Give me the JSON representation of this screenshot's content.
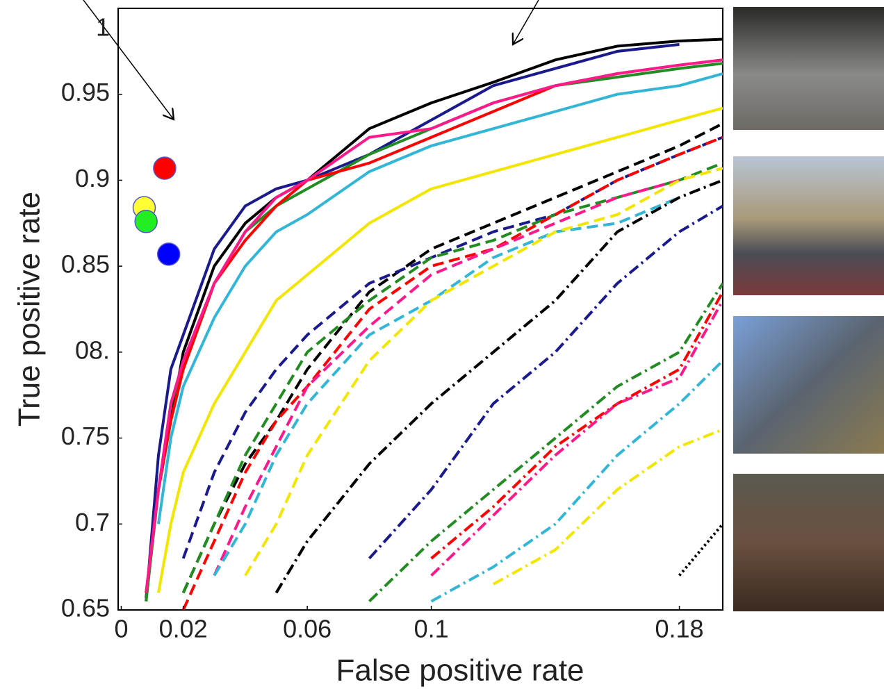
{
  "chart_data": {
    "type": "line",
    "ylabel": "True positive rate",
    "xlabel": "False positive rate",
    "xlim": [
      -0.001,
      0.194
    ],
    "ylim": [
      0.65,
      1.0
    ],
    "xticks": [
      0,
      0.02,
      0.06,
      0.1,
      0.18
    ],
    "yticks": [
      0.65,
      0.7,
      0.75,
      {
        "value": 0.8,
        "label": "08."
      },
      0.85,
      0.9,
      0.95,
      1
    ],
    "x": [
      0.008,
      0.012,
      0.016,
      0.02,
      0.03,
      0.04,
      0.05,
      0.06,
      0.08,
      0.1,
      0.12,
      0.14,
      0.16,
      0.18,
      0.194
    ],
    "series": [
      {
        "color": "#000000",
        "style": "solid",
        "values": [
          0.657,
          0.72,
          0.76,
          0.8,
          0.85,
          0.875,
          0.89,
          0.9,
          0.93,
          0.945,
          0.957,
          0.97,
          0.978,
          0.981,
          0.982
        ]
      },
      {
        "color": "#1a1a8c",
        "style": "solid",
        "values": [
          0.655,
          0.74,
          0.79,
          0.81,
          0.86,
          0.885,
          0.895,
          0.9,
          0.915,
          0.935,
          0.955,
          0.965,
          0.975,
          0.979,
          null
        ]
      },
      {
        "color": "#228b22",
        "style": "solid",
        "values": [
          0.655,
          0.72,
          0.77,
          0.79,
          0.84,
          0.87,
          0.885,
          0.895,
          0.915,
          0.93,
          0.945,
          0.955,
          0.96,
          0.965,
          0.968
        ]
      },
      {
        "color": "#ff0000",
        "style": "solid",
        "values": [
          0.66,
          0.72,
          0.76,
          0.79,
          0.84,
          0.865,
          0.885,
          0.9,
          0.91,
          0.925,
          0.94,
          0.955,
          0.962,
          0.967,
          0.97
        ]
      },
      {
        "color": "#ff1a8c",
        "style": "solid",
        "values": [
          0.66,
          0.72,
          0.77,
          0.795,
          0.84,
          0.87,
          0.89,
          0.9,
          0.925,
          0.93,
          0.945,
          0.955,
          0.962,
          0.967,
          0.97
        ]
      },
      {
        "color": "#33b5d6",
        "style": "solid",
        "values": [
          null,
          0.7,
          0.75,
          0.78,
          0.82,
          0.85,
          0.87,
          0.88,
          0.905,
          0.92,
          0.93,
          0.94,
          0.95,
          0.955,
          0.962
        ]
      },
      {
        "color": "#f2e600",
        "style": "solid",
        "values": [
          null,
          0.66,
          0.7,
          0.73,
          0.77,
          0.8,
          0.83,
          0.845,
          0.875,
          0.895,
          0.905,
          0.915,
          0.925,
          0.935,
          0.942
        ]
      },
      {
        "color": "#000000",
        "style": "dashed",
        "values": [
          null,
          null,
          null,
          0.66,
          0.7,
          0.735,
          0.76,
          0.79,
          0.835,
          0.86,
          0.875,
          0.89,
          0.905,
          0.92,
          0.933
        ]
      },
      {
        "color": "#1a1a8c",
        "style": "dashed",
        "values": [
          null,
          null,
          null,
          0.68,
          0.73,
          0.765,
          0.79,
          0.81,
          0.84,
          0.855,
          0.87,
          0.88,
          0.9,
          0.915,
          0.925
        ]
      },
      {
        "color": "#228b22",
        "style": "dashed",
        "values": [
          null,
          null,
          null,
          0.66,
          0.7,
          0.74,
          0.77,
          0.8,
          0.83,
          0.855,
          0.865,
          0.88,
          0.89,
          0.9,
          0.91
        ]
      },
      {
        "color": "#ff0000",
        "style": "dashed",
        "values": [
          null,
          null,
          null,
          0.65,
          0.69,
          0.73,
          0.76,
          0.78,
          0.825,
          0.85,
          0.86,
          0.88,
          0.9,
          0.915,
          0.925
        ]
      },
      {
        "color": "#ff1a8c",
        "style": "dashed",
        "values": [
          null,
          null,
          null,
          null,
          0.67,
          0.71,
          0.745,
          0.78,
          0.815,
          0.845,
          0.86,
          0.875,
          0.89,
          0.9,
          null
        ]
      },
      {
        "color": "#33b5d6",
        "style": "dashed",
        "values": [
          null,
          null,
          null,
          null,
          0.67,
          0.7,
          0.74,
          0.77,
          0.81,
          0.83,
          0.855,
          0.87,
          0.875,
          0.89,
          null
        ]
      },
      {
        "color": "#f2e600",
        "style": "dashed",
        "values": [
          null,
          null,
          null,
          null,
          null,
          0.67,
          0.7,
          0.74,
          0.795,
          0.83,
          0.85,
          0.87,
          0.88,
          0.9,
          0.907
        ]
      },
      {
        "color": "#000000",
        "style": "dashdot",
        "values": [
          null,
          null,
          null,
          null,
          null,
          null,
          0.66,
          0.69,
          0.735,
          0.77,
          0.8,
          0.83,
          0.87,
          0.89,
          0.9
        ]
      },
      {
        "color": "#1a1a8c",
        "style": "dashdot",
        "values": [
          null,
          null,
          null,
          null,
          null,
          null,
          null,
          null,
          0.68,
          0.72,
          0.77,
          0.8,
          0.84,
          0.87,
          0.885
        ]
      },
      {
        "color": "#228b22",
        "style": "dashdot",
        "values": [
          null,
          null,
          null,
          null,
          null,
          null,
          null,
          null,
          0.655,
          0.69,
          0.72,
          0.75,
          0.78,
          0.8,
          0.84
        ]
      },
      {
        "color": "#ff0000",
        "style": "dashdot",
        "values": [
          null,
          null,
          null,
          null,
          null,
          null,
          null,
          null,
          null,
          0.68,
          0.71,
          0.745,
          0.77,
          0.79,
          0.835
        ]
      },
      {
        "color": "#ff1a8c",
        "style": "dashdot",
        "values": [
          null,
          null,
          null,
          null,
          null,
          null,
          null,
          null,
          null,
          0.67,
          0.705,
          0.74,
          0.77,
          0.785,
          0.83
        ]
      },
      {
        "color": "#33b5d6",
        "style": "dashdot",
        "values": [
          null,
          null,
          null,
          null,
          null,
          null,
          null,
          null,
          null,
          0.655,
          0.675,
          0.7,
          0.74,
          0.77,
          0.795
        ]
      },
      {
        "color": "#f2e600",
        "style": "dashdot",
        "values": [
          null,
          null,
          null,
          null,
          null,
          null,
          null,
          null,
          null,
          null,
          0.665,
          0.685,
          0.72,
          0.745,
          0.755
        ]
      },
      {
        "color": "#000000",
        "style": "dotted",
        "values": [
          null,
          null,
          null,
          null,
          null,
          null,
          null,
          null,
          null,
          null,
          null,
          null,
          null,
          0.67,
          0.7
        ]
      }
    ],
    "points": {
      "x": [
        0.014,
        0.0074,
        0.008,
        0.0153
      ],
      "y": [
        0.907,
        0.884,
        0.876,
        0.857
      ],
      "colors": [
        "#ff0000",
        "#ffff33",
        "#22ee22",
        "#0000ff"
      ]
    }
  }
}
